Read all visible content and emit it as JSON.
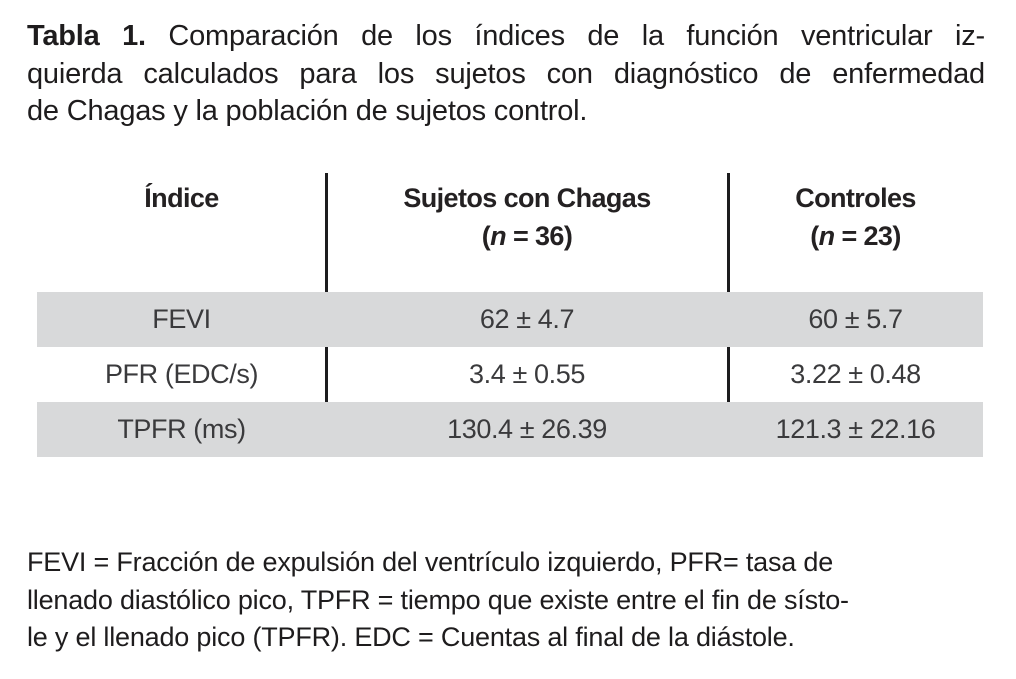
{
  "title": {
    "label": "Tabla 1.",
    "line1_rest": "Comparación de los índices de la función ventricular iz-",
    "line2": "quierda calculados para los sujetos con diagnóstico de enfermedad",
    "line3": "de Chagas y la población de sujetos control."
  },
  "table": {
    "col1_header": "Índice",
    "col2_header": "Sujetos con Chagas",
    "col2_sub_pre": "(",
    "col2_sub_n": "n",
    "col2_sub_post": " = 36)",
    "col3_header": "Controles",
    "col3_sub_pre": "(",
    "col3_sub_n": "n",
    "col3_sub_post": " = 23)",
    "rows": [
      {
        "index": "FEVI",
        "chagas": "62 ± 4.7",
        "controles": "60 ± 5.7"
      },
      {
        "index": "PFR (EDC/s)",
        "chagas": "3.4 ± 0.55",
        "controles": "3.22 ± 0.48"
      },
      {
        "index": "TPFR (ms)",
        "chagas": "130.4 ± 26.39",
        "controles": "121.3 ± 22.16"
      }
    ]
  },
  "footnote": {
    "line1": "FEVI = Fracción de expulsión del ventrículo izquierdo, PFR= tasa de",
    "line2": "llenado diastólico pico, TPFR = tiempo que existe entre el fin de sísto-",
    "line3": "le y el llenado pico (TPFR). EDC = Cuentas al final de la diástole."
  },
  "colors": {
    "row_shade": "#d8d9da",
    "rule": "#1c1c1e",
    "title_text": "#1e1c1d",
    "cell_text": "#3a3a3c"
  }
}
